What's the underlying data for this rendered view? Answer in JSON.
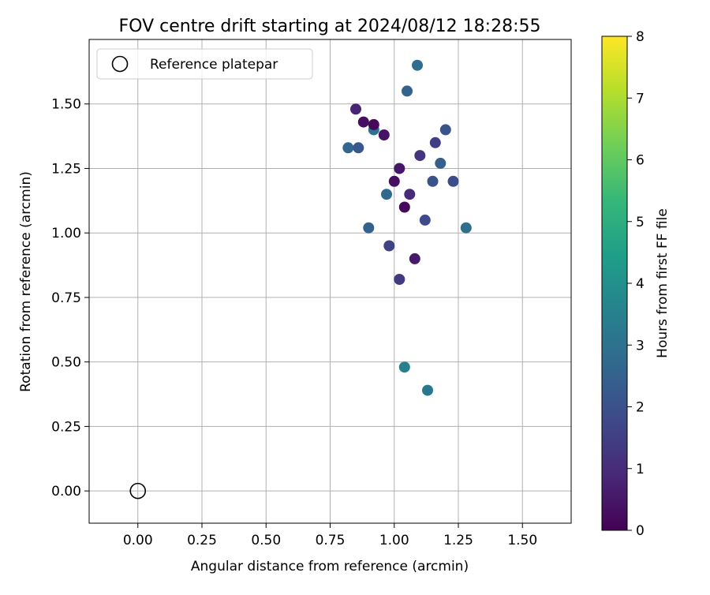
{
  "chart_data": {
    "type": "scatter",
    "title": "FOV centre drift starting at 2024/08/12 18:28:55",
    "xlabel": "Angular distance from reference (arcmin)",
    "ylabel": "Rotation from reference (arcmin)",
    "xlim": [
      -0.19,
      1.69
    ],
    "ylim": [
      -0.125,
      1.75
    ],
    "x_ticks": [
      0.0,
      0.25,
      0.5,
      0.75,
      1.0,
      1.25,
      1.5
    ],
    "x_tick_labels": [
      "0.00",
      "0.25",
      "0.50",
      "0.75",
      "1.00",
      "1.25",
      "1.50"
    ],
    "y_ticks": [
      0.0,
      0.25,
      0.5,
      0.75,
      1.0,
      1.25,
      1.5
    ],
    "y_tick_labels": [
      "0.00",
      "0.25",
      "0.50",
      "0.75",
      "1.00",
      "1.25",
      "1.50"
    ],
    "grid": true,
    "legend": {
      "placement": "top-left",
      "entries": [
        {
          "label": "Reference platepar",
          "marker": "hollow-circle"
        }
      ]
    },
    "reference_point": {
      "x": 0.0,
      "y": 0.0
    },
    "colorbar": {
      "label": "Hours from first FF file",
      "colormap": "viridis",
      "range": [
        0,
        8
      ],
      "ticks": [
        0,
        1,
        2,
        3,
        4,
        5,
        6,
        7,
        8
      ],
      "tick_labels": [
        "0",
        "1",
        "2",
        "3",
        "4",
        "5",
        "6",
        "7",
        "8"
      ]
    },
    "colormap_stops": [
      "#440154",
      "#482878",
      "#3e4989",
      "#31688e",
      "#26828e",
      "#1f9e89",
      "#35b779",
      "#6ece58",
      "#b5de2b",
      "#fde725"
    ],
    "series": [
      {
        "hours": [
          0.3,
          0.2,
          0.4,
          0.5,
          0.3,
          1.0,
          1.2,
          1.5,
          0.8,
          0.2,
          1.8,
          2.2,
          2.5,
          1.6,
          0.6,
          1.4
        ],
        "x": [
          0.88,
          0.92,
          0.96,
          1.02,
          1.0,
          1.06,
          1.1,
          1.16,
          0.85,
          1.04,
          1.12,
          0.86,
          0.9,
          0.98,
          1.08,
          1.02
        ],
        "y": [
          1.43,
          1.42,
          1.38,
          1.25,
          1.2,
          1.15,
          1.3,
          1.35,
          1.48,
          1.1,
          1.05,
          1.33,
          1.02,
          0.95,
          0.9,
          0.82
        ]
      },
      {
        "hours": [
          2.8,
          2.5,
          3.0,
          2.6,
          2.1,
          2.9,
          3.2,
          2.4,
          2.0,
          1.9,
          3.5,
          2.7
        ],
        "x": [
          1.09,
          1.05,
          0.92,
          0.82,
          1.2,
          1.28,
          1.13,
          1.18,
          1.15,
          1.23,
          1.04,
          0.97
        ],
        "y": [
          1.65,
          1.55,
          1.4,
          1.33,
          1.4,
          1.02,
          0.39,
          1.27,
          1.2,
          1.2,
          0.48,
          1.15
        ]
      }
    ]
  }
}
